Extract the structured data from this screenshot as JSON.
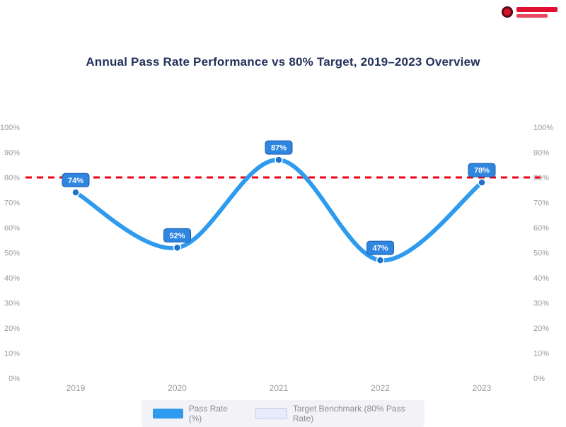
{
  "page": {
    "background": "#ffffff"
  },
  "logo": {
    "name": "brand-logo",
    "accent_color": "#d8102a"
  },
  "chart_data": {
    "type": "line",
    "title": "Annual Pass Rate Performance vs 80% Target, 2019–2023 Overview",
    "categories": [
      "2019",
      "2020",
      "2021",
      "2022",
      "2023"
    ],
    "series": [
      {
        "name": "Pass Rate (%)",
        "values": [
          74,
          52,
          87,
          47,
          78
        ],
        "color": "#2f9bee",
        "marker_color": "#1e73c9",
        "label_box_color": "#2e86e0",
        "label_box_border": "#1b5fae",
        "label_text_color": "#ffffff"
      }
    ],
    "data_labels": [
      "74%",
      "52%",
      "87%",
      "47%",
      "78%"
    ],
    "target_line": {
      "value": 80,
      "color": "#ef0015",
      "style": "dashed"
    },
    "ylim": [
      0,
      100
    ],
    "y_ticks": [
      0,
      10,
      20,
      30,
      40,
      50,
      60,
      70,
      80,
      90,
      100
    ],
    "y_tick_suffix": "%",
    "axes": {
      "left_axis": true,
      "right_axis": true,
      "tick_color": "#9b9b9b",
      "grid": false
    },
    "legend": [
      {
        "label": "Pass Rate (%)",
        "swatch": "#2f9bee",
        "border": ""
      },
      {
        "label": "Target Benchmark (80% Pass Rate)",
        "swatch": "#e8ebfa",
        "border": "#c7cdeb"
      }
    ],
    "legend_position": "bottom"
  }
}
